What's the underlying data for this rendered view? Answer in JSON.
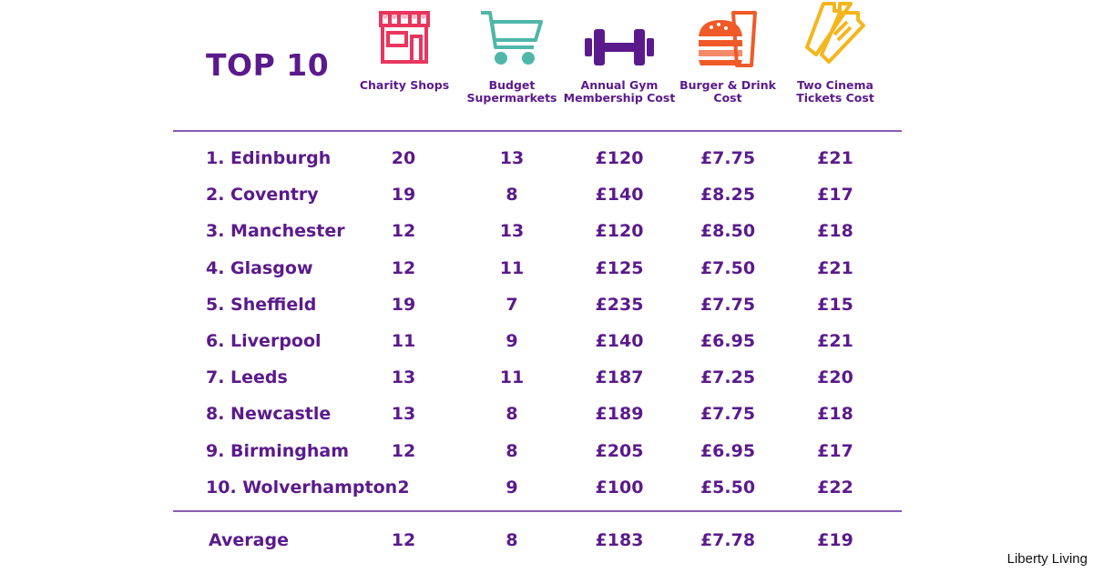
{
  "title": "TOP 10",
  "colors": {
    "text": "#5b1a8c",
    "rule": "#8b5bb5",
    "charity_icon": "#e8365f",
    "supermarket_icon": "#4fb7aa",
    "gym_icon": "#5b1a8c",
    "burger_icon": "#f05a28",
    "cinema_icon": "#f5b51c"
  },
  "chart_data": {
    "type": "table",
    "title": "TOP 10",
    "columns": [
      {
        "label": "Charity Shops",
        "icon": "storefront-icon"
      },
      {
        "label": "Budget Supermarkets",
        "icon": "shopping-cart-icon"
      },
      {
        "label": "Annual Gym Membership Cost",
        "icon": "dumbbell-icon"
      },
      {
        "label": "Burger & Drink Cost",
        "icon": "burger-drink-icon"
      },
      {
        "label": "Two Cinema Tickets Cost",
        "icon": "cinema-tickets-icon"
      }
    ],
    "rows": [
      {
        "city": "1. Edinburgh",
        "values": [
          "20",
          "13",
          "£120",
          "£7.75",
          "£21"
        ]
      },
      {
        "city": "2. Coventry",
        "values": [
          "19",
          "8",
          "£140",
          "£8.25",
          "£17"
        ]
      },
      {
        "city": "3. Manchester",
        "values": [
          "12",
          "13",
          "£120",
          "£8.50",
          "£18"
        ]
      },
      {
        "city": "4. Glasgow",
        "values": [
          "12",
          "11",
          "£125",
          "£7.50",
          "£21"
        ]
      },
      {
        "city": "5. Sheffield",
        "values": [
          "19",
          "7",
          "£235",
          "£7.75",
          "£15"
        ]
      },
      {
        "city": "6. Liverpool",
        "values": [
          "11",
          "9",
          "£140",
          "£6.95",
          "£21"
        ]
      },
      {
        "city": "7. Leeds",
        "values": [
          "13",
          "11",
          "£187",
          "£7.25",
          "£20"
        ]
      },
      {
        "city": "8. Newcastle",
        "values": [
          "13",
          "8",
          "£189",
          "£7.75",
          "£18"
        ]
      },
      {
        "city": "9. Birmingham",
        "values": [
          "12",
          "8",
          "£205",
          "£6.95",
          "£17"
        ]
      },
      {
        "city": "10. Wolverhampton",
        "values": [
          "2",
          "9",
          "£100",
          "£5.50",
          "£22"
        ]
      }
    ],
    "average": {
      "label": "Average",
      "values": [
        "12",
        "8",
        "£183",
        "£7.78",
        "£19"
      ]
    }
  },
  "watermark": "Liberty Living"
}
